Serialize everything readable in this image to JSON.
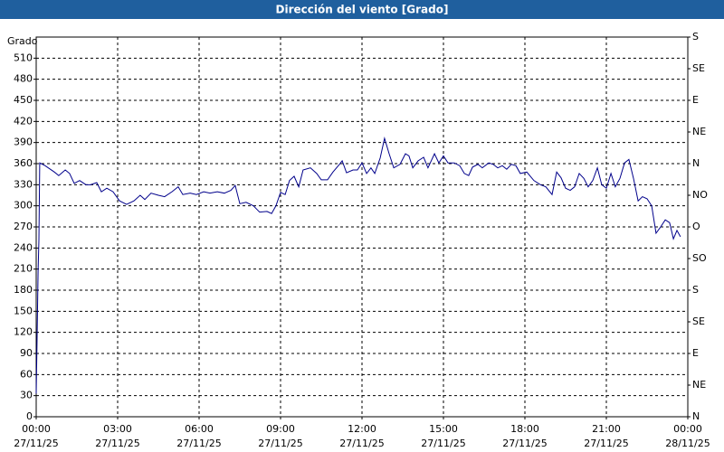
{
  "chart_data": {
    "type": "line",
    "title": "Dirección del viento [Grado]",
    "y_label": "Grado",
    "xlim": [
      0,
      24
    ],
    "xticks": [
      {
        "value": 0,
        "label": "00:00"
      },
      {
        "value": 3,
        "label": "03:00"
      },
      {
        "value": 6,
        "label": "06:00"
      },
      {
        "value": 9,
        "label": "09:00"
      },
      {
        "value": 12,
        "label": "12:00"
      },
      {
        "value": 15,
        "label": "15:00"
      },
      {
        "value": 18,
        "label": "18:00"
      },
      {
        "value": 21,
        "label": "21:00"
      },
      {
        "value": 24,
        "label": "00:00"
      }
    ],
    "xtick_dates": [
      "27/11/25",
      "27/11/25",
      "27/11/25",
      "27/11/25",
      "27/11/25",
      "27/11/25",
      "27/11/25",
      "27/11/25",
      "28/11/25"
    ],
    "ylim": [
      0,
      540
    ],
    "yticks": [
      0,
      30,
      60,
      90,
      120,
      150,
      180,
      210,
      240,
      270,
      300,
      330,
      360,
      390,
      420,
      450,
      480,
      510
    ],
    "y2lim": [
      0,
      540
    ],
    "y2ticks": [
      {
        "value": 0,
        "label": "N"
      },
      {
        "value": 45,
        "label": "NE"
      },
      {
        "value": 90,
        "label": "E"
      },
      {
        "value": 135,
        "label": "SE"
      },
      {
        "value": 180,
        "label": "S"
      },
      {
        "value": 225,
        "label": "SO"
      },
      {
        "value": 270,
        "label": "O"
      },
      {
        "value": 315,
        "label": "NO"
      },
      {
        "value": 360,
        "label": "N"
      },
      {
        "value": 405,
        "label": "NE"
      },
      {
        "value": 450,
        "label": "E"
      },
      {
        "value": 495,
        "label": "SE"
      },
      {
        "value": 540,
        "label": "S"
      }
    ],
    "grid": true,
    "series": [
      {
        "color": "#00008b",
        "x": [
          0,
          0.03,
          0.07,
          0.1,
          0.13,
          0.33,
          0.67,
          0.83,
          1.07,
          1.23,
          1.4,
          1.6,
          1.83,
          2,
          2.23,
          2.4,
          2.6,
          2.83,
          3.07,
          3.33,
          3.6,
          3.83,
          4,
          4.23,
          4.5,
          4.73,
          5,
          5.23,
          5.4,
          5.67,
          5.9,
          6.17,
          6.4,
          6.67,
          6.93,
          7.17,
          7.33,
          7.5,
          7.73,
          8,
          8.23,
          8.5,
          8.67,
          8.83,
          9,
          9.17,
          9.33,
          9.5,
          9.67,
          9.83,
          10.1,
          10.33,
          10.5,
          10.73,
          10.93,
          11.17,
          11.27,
          11.43,
          11.67,
          11.83,
          12,
          12.17,
          12.33,
          12.47,
          12.67,
          12.83,
          13,
          13.17,
          13.4,
          13.6,
          13.73,
          13.87,
          14.07,
          14.27,
          14.43,
          14.67,
          14.83,
          15,
          15.17,
          15.4,
          15.6,
          15.77,
          15.93,
          16.07,
          16.27,
          16.43,
          16.67,
          16.83,
          17,
          17.17,
          17.33,
          17.5,
          17.67,
          17.83,
          18.07,
          18.33,
          18.57,
          18.77,
          19,
          19.17,
          19.33,
          19.5,
          19.67,
          19.83,
          20,
          20.17,
          20.33,
          20.5,
          20.67,
          20.83,
          21,
          21.17,
          21.33,
          21.5,
          21.67,
          21.83,
          22,
          22.17,
          22.33,
          22.5,
          22.67,
          22.83,
          23,
          23.17,
          23.33,
          23.47,
          23.6,
          23.73
        ],
        "values": [
          33,
          105,
          207,
          252,
          361,
          357,
          348,
          343,
          351,
          346,
          332,
          336,
          330,
          330,
          333,
          320,
          325,
          320,
          307,
          302,
          307,
          315,
          309,
          318,
          315,
          313,
          320,
          327,
          316,
          318,
          316,
          320,
          318,
          320,
          318,
          322,
          329,
          303,
          305,
          300,
          291,
          292,
          289,
          300,
          319,
          316,
          336,
          342,
          327,
          351,
          354,
          346,
          337,
          337,
          348,
          359,
          364,
          347,
          351,
          351,
          361,
          346,
          354,
          346,
          368,
          396,
          374,
          354,
          359,
          374,
          371,
          354,
          364,
          369,
          354,
          374,
          361,
          371,
          361,
          361,
          357,
          346,
          343,
          355,
          359,
          354,
          361,
          359,
          354,
          357,
          352,
          359,
          357,
          346,
          348,
          336,
          330,
          327,
          316,
          348,
          340,
          325,
          322,
          327,
          346,
          339,
          327,
          336,
          354,
          330,
          325,
          346,
          327,
          339,
          361,
          366,
          339,
          307,
          313,
          310,
          300,
          261,
          270,
          280,
          276,
          253,
          265,
          256
        ]
      }
    ]
  }
}
